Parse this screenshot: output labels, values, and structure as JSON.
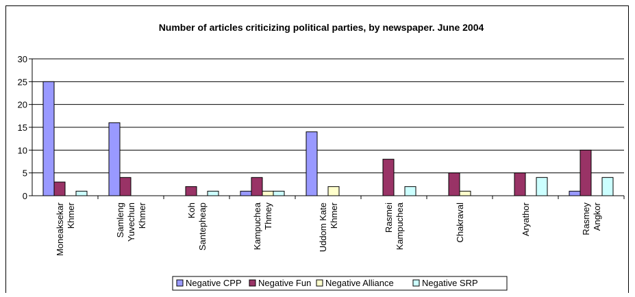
{
  "chart_data": {
    "type": "bar",
    "title": "Number of articles criticizing political parties, by newspaper. June 2004",
    "categories": [
      [
        "Moneaksekar",
        "Khmer"
      ],
      [
        "Samleng",
        "Yuvechun",
        "Khmer"
      ],
      [
        "Koh",
        "Santepheap"
      ],
      [
        "Kampuchea",
        "Thmey"
      ],
      [
        "Uddom Kate",
        "Khmer"
      ],
      [
        "Rasmei",
        "Kampuchea"
      ],
      [
        "Chakraval"
      ],
      [
        "Aryathor"
      ],
      [
        "Rasmey",
        "Angkor"
      ]
    ],
    "series": [
      {
        "name": "Negative CPP",
        "color": "#9999ff",
        "values": [
          25,
          16,
          0,
          1,
          14,
          0,
          0,
          0,
          1
        ]
      },
      {
        "name": "Negative Fun",
        "color": "#993366",
        "values": [
          3,
          4,
          2,
          4,
          0,
          8,
          5,
          5,
          10
        ]
      },
      {
        "name": "Negative Alliance",
        "color": "#ffffcc",
        "values": [
          0,
          0,
          0,
          1,
          2,
          0,
          1,
          0,
          0
        ]
      },
      {
        "name": "Negative SRP",
        "color": "#ccffff",
        "values": [
          1,
          0,
          1,
          1,
          0,
          2,
          0,
          4,
          4
        ]
      }
    ],
    "ylim": [
      0,
      30
    ],
    "yticks": [
      0,
      5,
      10,
      15,
      20,
      25,
      30
    ],
    "grid": true,
    "legend_position": "bottom"
  }
}
